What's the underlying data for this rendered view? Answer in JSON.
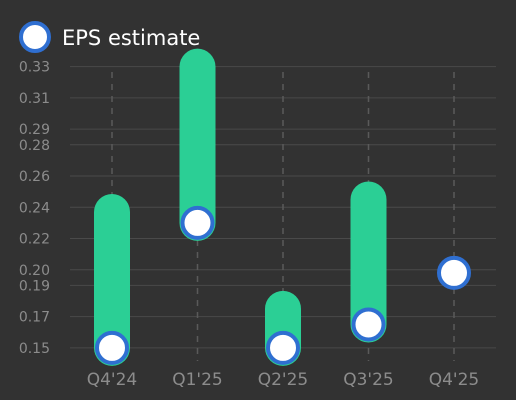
{
  "legend": {
    "label": "EPS estimate"
  },
  "colors": {
    "background": "#323232",
    "bar": "#2bcf95",
    "marker_fill": "#ffffff",
    "marker_stroke": "#2f6fd1",
    "grid": "#4a4a4a",
    "dashed_grid": "#5a5a5a",
    "tick_text": "#8c8c8c",
    "legend_text": "#ffffff"
  },
  "chart_data": {
    "type": "bar",
    "categories": [
      "Q4'24",
      "Q1'25",
      "Q2'25",
      "Q3'25",
      "Q4'25"
    ],
    "series": [
      {
        "name": "EPS estimate",
        "values": [
          0.15,
          0.23,
          0.15,
          0.165,
          0.198
        ]
      }
    ],
    "bar_ranges": [
      [
        0.15,
        0.237
      ],
      [
        0.23,
        0.33
      ],
      [
        0.15,
        0.175
      ],
      [
        0.165,
        0.245
      ],
      null
    ],
    "y_ticks": [
      "0.15",
      "0.17",
      "0.19",
      "0.20",
      "0.22",
      "0.24",
      "0.26",
      "0.28",
      "0.29",
      "0.31",
      "0.33"
    ],
    "ylim": [
      0.148,
      0.333
    ],
    "grid": true,
    "legend_position": "top-left",
    "title": "",
    "xlabel": "",
    "ylabel": ""
  }
}
